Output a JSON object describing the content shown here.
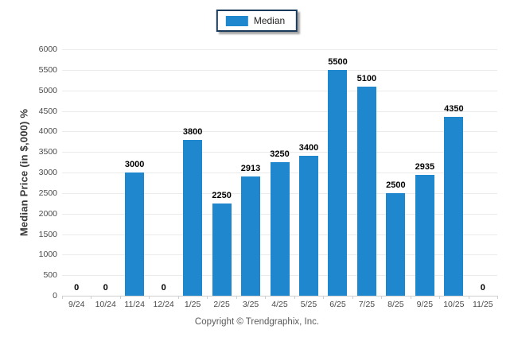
{
  "legend": {
    "label": "Median",
    "swatch_color": "#1E87CD",
    "position": "top-center"
  },
  "footer": {
    "copyright": "Copyright © Trendgraphix, Inc."
  },
  "colors": {
    "bar": "#1E87CD",
    "gridline": "#EBEBEB",
    "axis_line": "#CFCFCF",
    "tick_label": "#4A4A4A",
    "value_label": "#000000",
    "legend_border": "#1A3A5C"
  },
  "chart_data": {
    "type": "bar",
    "title": "",
    "ylabel": "Median Price (in $,000) %",
    "xlabel": "",
    "categories": [
      "9/24",
      "10/24",
      "11/24",
      "12/24",
      "1/25",
      "2/25",
      "3/25",
      "4/25",
      "5/25",
      "6/25",
      "7/25",
      "8/25",
      "9/25",
      "10/25",
      "11/25"
    ],
    "values": [
      0,
      0,
      3000,
      0,
      3800,
      2250,
      2913,
      3250,
      3400,
      5500,
      5100,
      2500,
      2935,
      4350,
      0
    ],
    "series_name": "Median",
    "ylim": [
      0,
      6000
    ],
    "ytick_step": 500,
    "yticks": [
      0,
      500,
      1000,
      1500,
      2000,
      2500,
      3000,
      3500,
      4000,
      4500,
      5000,
      5500,
      6000
    ],
    "grid": "horizontal",
    "data_labels": true,
    "legend_position": "top-center"
  }
}
